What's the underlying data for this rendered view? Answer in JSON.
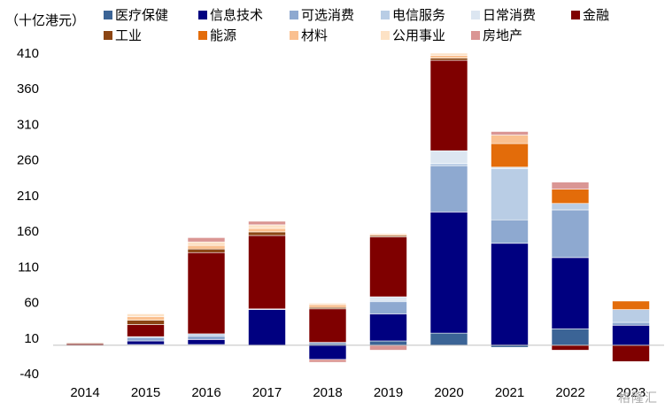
{
  "watermark": "格隆汇",
  "chart_data": {
    "type": "bar",
    "stacked": true,
    "unit_label": "（十亿港元）",
    "categories": [
      "2014",
      "2015",
      "2016",
      "2017",
      "2018",
      "2019",
      "2020",
      "2021",
      "2022",
      "2023"
    ],
    "ylim": [
      -40,
      410
    ],
    "yticks": [
      410,
      360,
      310,
      260,
      210,
      160,
      110,
      60,
      10,
      -40
    ],
    "grid": false,
    "legend_position": "top",
    "series": [
      {
        "name": "医疗保健",
        "color": "#3B6496",
        "values": [
          0,
          1,
          1,
          0,
          2,
          6,
          17,
          6,
          23,
          0
        ]
      },
      {
        "name": "信息技术",
        "color": "#000080",
        "values": [
          0,
          5,
          7,
          50,
          -20,
          38,
          170,
          143,
          100,
          28
        ]
      },
      {
        "name": "可选消费",
        "color": "#8EA9D0",
        "values": [
          0,
          5,
          5,
          1,
          2,
          17,
          65,
          33,
          67,
          4
        ]
      },
      {
        "name": "电信服务",
        "color": "#B9CDE5",
        "values": [
          0,
          1,
          3,
          0,
          0,
          2,
          3,
          72,
          9,
          18
        ]
      },
      {
        "name": "日常消费",
        "color": "#DCE6F1",
        "values": [
          0,
          0,
          0,
          0,
          0,
          5,
          18,
          2,
          0,
          0
        ]
      },
      {
        "name": "金融",
        "color": "#7F0000",
        "values": [
          2,
          17,
          114,
          103,
          47,
          84,
          127,
          0,
          0,
          -23
        ]
      },
      {
        "name": "工业",
        "color": "#8B4513",
        "values": [
          1,
          6,
          5,
          5,
          2,
          2,
          3,
          0,
          0,
          0
        ]
      },
      {
        "name": "能源",
        "color": "#E36C0A",
        "values": [
          0,
          0,
          0,
          0,
          0,
          0,
          0,
          33,
          20,
          12
        ]
      },
      {
        "name": "材料",
        "color": "#FAC090",
        "values": [
          0,
          5,
          5,
          5,
          4,
          2,
          4,
          12,
          0,
          0
        ]
      },
      {
        "name": "公用事业",
        "color": "#FDE2C5",
        "values": [
          0,
          4,
          5,
          5,
          2,
          1,
          3,
          0,
          0,
          0
        ]
      },
      {
        "name": "房地产",
        "color": "#DA9694",
        "values": [
          0,
          0,
          6,
          5,
          -4,
          -7,
          0,
          5,
          10,
          0
        ]
      }
    ],
    "stack_overrides": [
      {
        "category": "2021",
        "series": "医疗保健",
        "value": -3
      },
      {
        "category": "2022",
        "series": "金融",
        "value": -7
      }
    ]
  }
}
